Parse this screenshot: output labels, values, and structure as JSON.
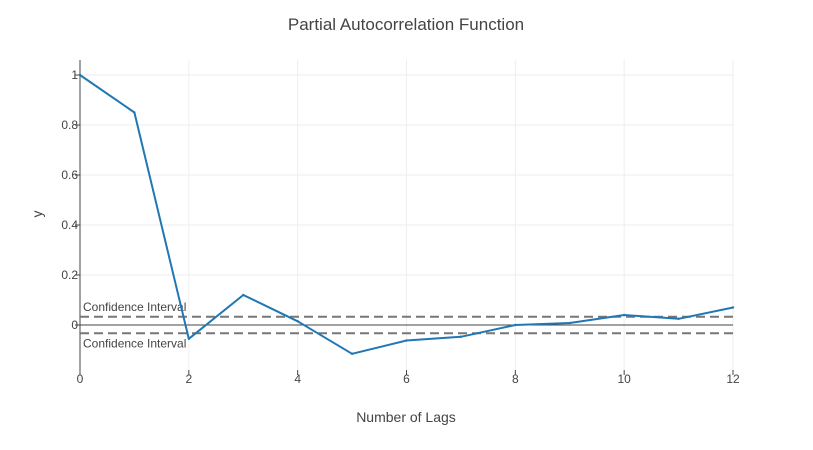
{
  "chart_data": {
    "type": "line",
    "title": "Partial Autocorrelation Function",
    "xlabel": "Number of Lags",
    "ylabel": "y",
    "xlim": [
      0,
      12
    ],
    "ylim": [
      -0.17,
      1.06
    ],
    "x_ticks": [
      "0",
      "2",
      "4",
      "6",
      "8",
      "10",
      "12"
    ],
    "y_ticks": [
      "0",
      "0.2",
      "0.4",
      "0.6",
      "0.8",
      "1"
    ],
    "grid": true,
    "series": [
      {
        "color": "#1f77b4",
        "x": [
          0,
          1,
          2,
          3,
          4,
          5,
          6,
          7,
          8,
          9,
          10,
          11,
          12
        ],
        "values": [
          1.0,
          0.85,
          -0.055,
          0.12,
          0.015,
          -0.115,
          -0.062,
          -0.047,
          0.0,
          0.008,
          0.04,
          0.025,
          0.07
        ]
      }
    ],
    "confidence_interval": {
      "upper": 0.033,
      "lower": -0.033,
      "upper_label": "Confidence Interval",
      "lower_label": "Confidence Interval",
      "color": "#777777"
    }
  }
}
